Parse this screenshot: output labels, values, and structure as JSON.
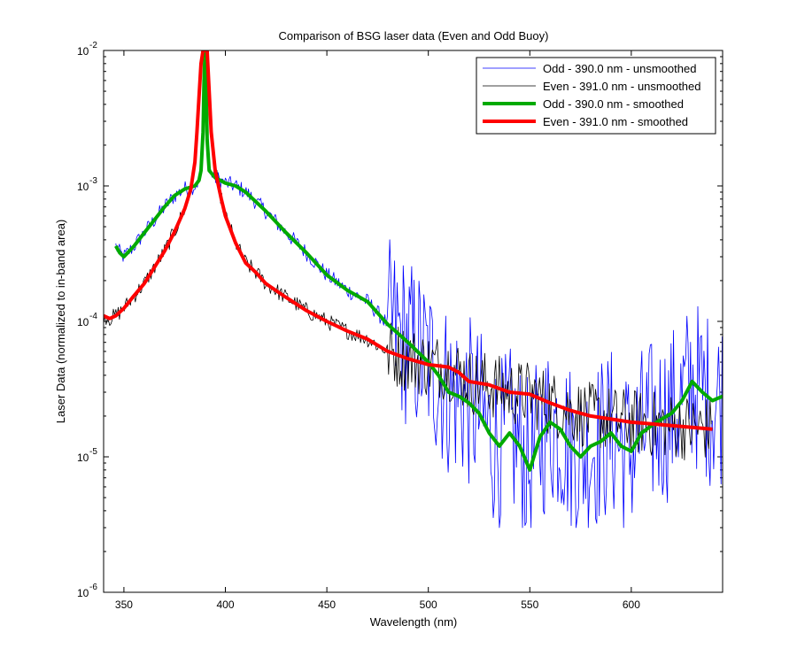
{
  "chart_data": {
    "type": "line",
    "title": "Comparison of BSG laser data (Even and Odd Buoy)",
    "xlabel": "Wavelength (nm)",
    "ylabel": "Laser Data (normalized to in-band area)",
    "xlim": [
      340,
      645
    ],
    "ylim": [
      1e-06,
      0.01
    ],
    "yscale": "log",
    "grid": false,
    "legend_position": "top-right",
    "x_ticks": [
      350,
      400,
      450,
      500,
      550,
      600
    ],
    "x_tick_labels": [
      "350",
      "400",
      "450",
      "500",
      "550",
      "600"
    ],
    "y_ticks": [
      1e-06,
      1e-05,
      0.0001,
      0.001,
      0.01
    ],
    "y_tick_labels": [
      {
        "base": "10",
        "exp": "-6"
      },
      {
        "base": "10",
        "exp": "-5"
      },
      {
        "base": "10",
        "exp": "-4"
      },
      {
        "base": "10",
        "exp": "-3"
      },
      {
        "base": "10",
        "exp": "-2"
      }
    ],
    "series": [
      {
        "name": "Odd - 390.0 nm - unsmoothed",
        "color": "#0000ff",
        "line_width": 0.8,
        "noisy": true,
        "x": [
          346,
          348,
          350,
          355,
          360,
          365,
          370,
          375,
          380,
          385,
          387,
          388,
          389,
          389.5,
          390,
          390.5,
          391,
          392,
          395,
          400,
          405,
          410,
          420,
          430,
          440,
          450,
          460,
          470,
          480,
          490,
          500,
          505,
          510,
          515,
          520,
          525,
          530,
          535,
          540,
          545,
          550,
          555,
          560,
          565,
          570,
          575,
          580,
          585,
          590,
          595,
          600,
          605,
          610,
          615,
          620,
          625,
          630,
          635,
          640,
          645
        ],
        "y": [
          0.00036,
          0.00032,
          0.0003,
          0.00036,
          0.00045,
          0.00056,
          0.0007,
          0.00085,
          0.00095,
          0.001,
          0.0011,
          0.0013,
          0.0025,
          0.006,
          0.01,
          0.006,
          0.0022,
          0.0013,
          0.00115,
          0.00105,
          0.001,
          0.0009,
          0.00065,
          0.00045,
          0.00032,
          0.00022,
          0.00017,
          0.00014,
          9.5e-05,
          7e-05,
          5e-05,
          4e-05,
          3e-05,
          2.8e-05,
          2.5e-05,
          2.1e-05,
          1.5e-05,
          1.2e-05,
          1.5e-05,
          1.2e-05,
          8e-06,
          1.4e-05,
          1.8e-05,
          1.6e-05,
          1.2e-05,
          1e-05,
          1.2e-05,
          1.3e-05,
          1.5e-05,
          1.2e-05,
          1.1e-05,
          1.5e-05,
          1.7e-05,
          1.9e-05,
          2.1e-05,
          2.6e-05,
          3.6e-05,
          3e-05,
          2.6e-05,
          2.8e-05
        ]
      },
      {
        "name": "Even - 391.0 nm - unsmoothed",
        "color": "#000000",
        "line_width": 0.8,
        "noisy": true,
        "x": [
          340,
          343,
          346,
          350,
          355,
          360,
          365,
          370,
          375,
          380,
          383,
          385,
          386,
          387,
          388,
          389,
          390,
          391,
          392,
          393,
          395,
          398,
          400,
          405,
          410,
          415,
          420,
          430,
          440,
          450,
          460,
          470,
          480,
          490,
          500,
          510,
          515,
          520,
          530,
          540,
          550,
          560,
          570,
          580,
          590,
          600,
          610,
          620,
          630,
          640
        ],
        "y": [
          0.00011,
          0.000105,
          0.00011,
          0.000125,
          0.000155,
          0.00019,
          0.00025,
          0.00033,
          0.00046,
          0.00068,
          0.00095,
          0.0015,
          0.0025,
          0.0045,
          0.008,
          0.01,
          0.01,
          0.01,
          0.005,
          0.0025,
          0.0013,
          0.0008,
          0.0006,
          0.00038,
          0.00027,
          0.00023,
          0.00019,
          0.00015,
          0.00012,
          0.0001,
          8.5e-05,
          7.4e-05,
          6e-05,
          5.3e-05,
          4.8e-05,
          4.6e-05,
          4.2e-05,
          3.6e-05,
          3.4e-05,
          3e-05,
          2.9e-05,
          2.5e-05,
          2.2e-05,
          2e-05,
          1.9e-05,
          1.8e-05,
          1.75e-05,
          1.7e-05,
          1.65e-05,
          1.6e-05
        ]
      },
      {
        "name": "Odd - 390.0 nm - smoothed",
        "color": "#00aa00",
        "line_width": 4,
        "noisy": false,
        "x": [
          346,
          348,
          350,
          355,
          360,
          365,
          370,
          375,
          380,
          385,
          387,
          388,
          389,
          389.5,
          390,
          390.5,
          391,
          392,
          395,
          400,
          405,
          410,
          420,
          430,
          440,
          450,
          460,
          470,
          480,
          490,
          500,
          505,
          510,
          515,
          520,
          525,
          530,
          535,
          540,
          545,
          550,
          555,
          560,
          565,
          570,
          575,
          580,
          585,
          590,
          595,
          600,
          605,
          610,
          615,
          620,
          625,
          630,
          635,
          640,
          645
        ],
        "y": [
          0.00036,
          0.00032,
          0.0003,
          0.00036,
          0.00045,
          0.00056,
          0.0007,
          0.00085,
          0.00095,
          0.001,
          0.0011,
          0.0013,
          0.0025,
          0.006,
          0.01,
          0.006,
          0.0022,
          0.0013,
          0.00115,
          0.00105,
          0.001,
          0.0009,
          0.00065,
          0.00045,
          0.00032,
          0.00022,
          0.00017,
          0.00014,
          9.5e-05,
          7e-05,
          5e-05,
          4e-05,
          3e-05,
          2.8e-05,
          2.5e-05,
          2.1e-05,
          1.5e-05,
          1.2e-05,
          1.5e-05,
          1.2e-05,
          8e-06,
          1.4e-05,
          1.8e-05,
          1.6e-05,
          1.2e-05,
          1e-05,
          1.2e-05,
          1.3e-05,
          1.5e-05,
          1.2e-05,
          1.1e-05,
          1.5e-05,
          1.7e-05,
          1.9e-05,
          2.1e-05,
          2.6e-05,
          3.6e-05,
          3e-05,
          2.6e-05,
          2.8e-05
        ]
      },
      {
        "name": "Even - 391.0 nm - smoothed",
        "color": "#ff0000",
        "line_width": 4,
        "noisy": false,
        "x": [
          340,
          343,
          346,
          350,
          355,
          360,
          365,
          370,
          375,
          380,
          383,
          385,
          386,
          387,
          388,
          389,
          390,
          391,
          392,
          393,
          395,
          398,
          400,
          405,
          410,
          415,
          420,
          430,
          440,
          450,
          460,
          470,
          480,
          490,
          500,
          510,
          515,
          520,
          530,
          540,
          550,
          560,
          570,
          580,
          590,
          600,
          610,
          620,
          630,
          640
        ],
        "y": [
          0.00011,
          0.000105,
          0.00011,
          0.000125,
          0.000155,
          0.00019,
          0.00025,
          0.00033,
          0.00046,
          0.00068,
          0.00095,
          0.0015,
          0.0025,
          0.0045,
          0.008,
          0.01,
          0.01,
          0.01,
          0.005,
          0.0025,
          0.0013,
          0.0008,
          0.0006,
          0.00038,
          0.00027,
          0.00023,
          0.00019,
          0.00015,
          0.00012,
          0.0001,
          8.5e-05,
          7.4e-05,
          6e-05,
          5.3e-05,
          4.8e-05,
          4.6e-05,
          4.2e-05,
          3.6e-05,
          3.4e-05,
          3e-05,
          2.9e-05,
          2.5e-05,
          2.2e-05,
          2e-05,
          1.9e-05,
          1.8e-05,
          1.75e-05,
          1.7e-05,
          1.65e-05,
          1.6e-05
        ]
      }
    ]
  }
}
